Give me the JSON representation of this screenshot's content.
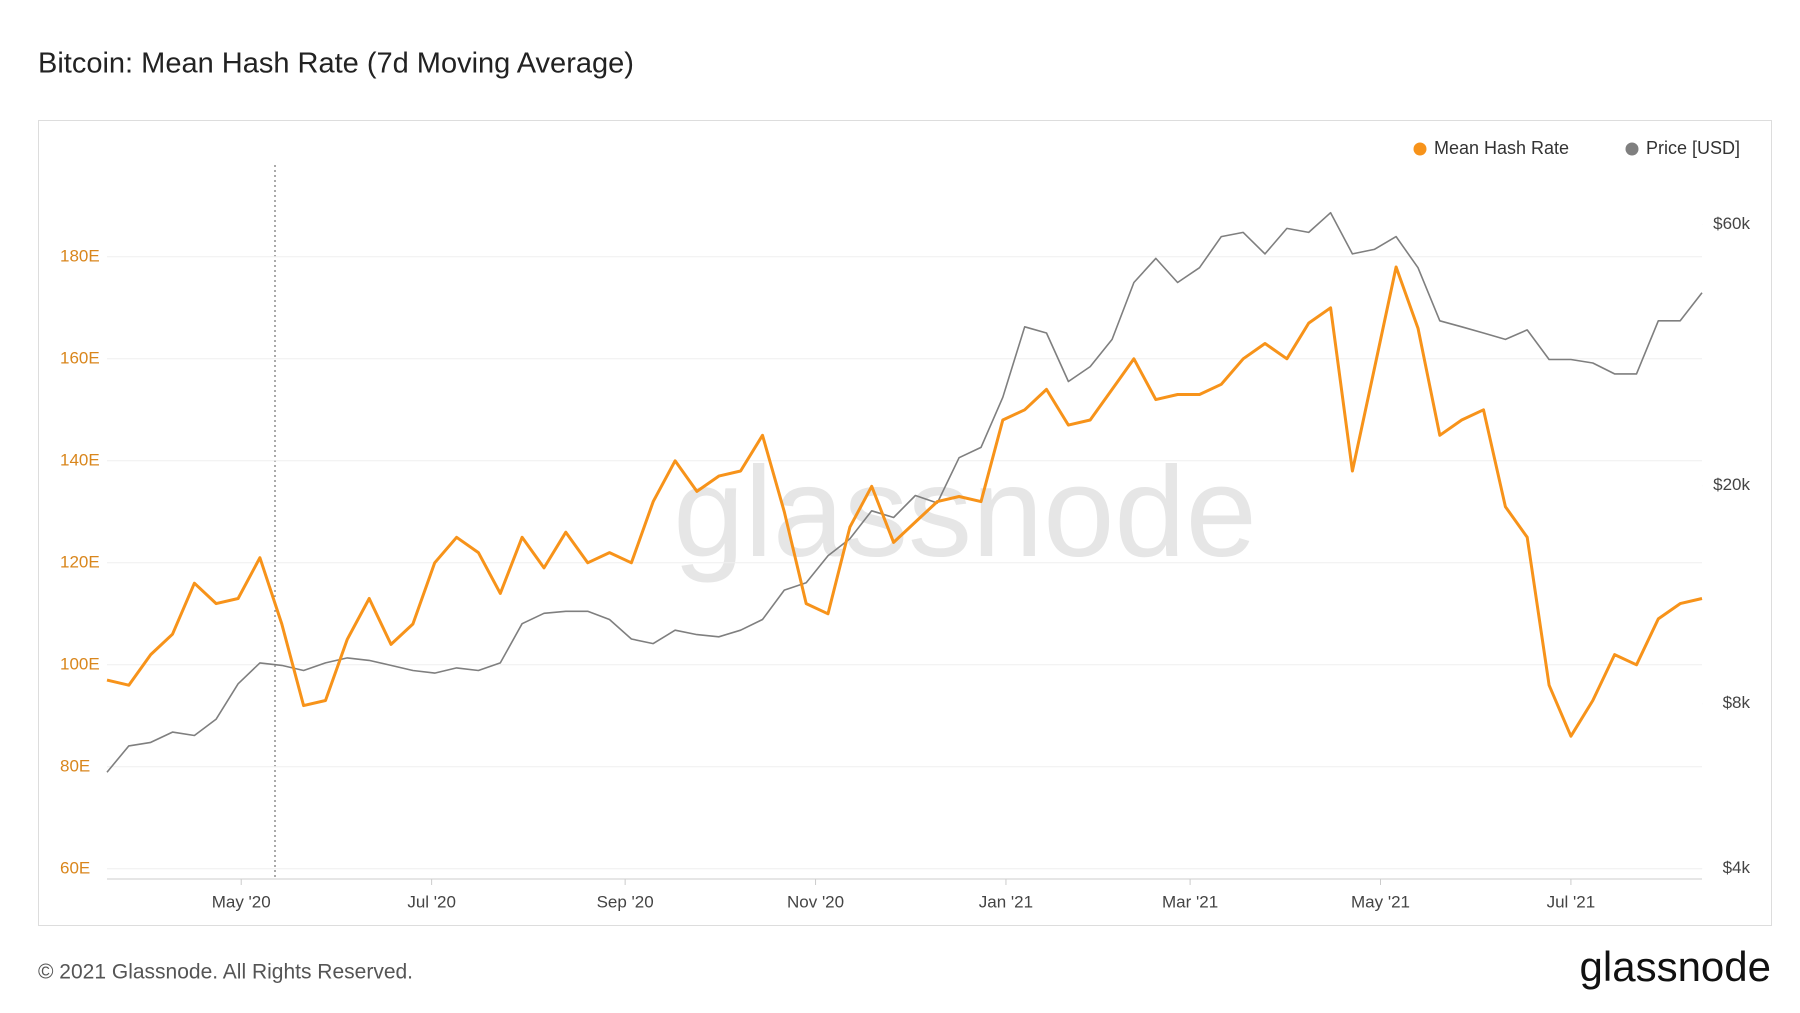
{
  "chart_data": {
    "type": "line",
    "title": "Bitcoin: Mean Hash Rate (7d Moving Average)",
    "watermark": "glassnode",
    "x": [
      "2020-03-19",
      "2020-03-26",
      "2020-04-02",
      "2020-04-09",
      "2020-04-16",
      "2020-04-23",
      "2020-04-30",
      "2020-05-07",
      "2020-05-14",
      "2020-05-21",
      "2020-05-28",
      "2020-06-04",
      "2020-06-11",
      "2020-06-18",
      "2020-06-25",
      "2020-07-02",
      "2020-07-09",
      "2020-07-16",
      "2020-07-23",
      "2020-07-30",
      "2020-08-06",
      "2020-08-13",
      "2020-08-20",
      "2020-08-27",
      "2020-09-03",
      "2020-09-10",
      "2020-09-17",
      "2020-09-24",
      "2020-10-01",
      "2020-10-08",
      "2020-10-15",
      "2020-10-22",
      "2020-10-29",
      "2020-11-05",
      "2020-11-12",
      "2020-11-19",
      "2020-11-26",
      "2020-12-03",
      "2020-12-10",
      "2020-12-17",
      "2020-12-24",
      "2020-12-31",
      "2021-01-07",
      "2021-01-14",
      "2021-01-21",
      "2021-01-28",
      "2021-02-04",
      "2021-02-11",
      "2021-02-18",
      "2021-02-25",
      "2021-03-04",
      "2021-03-11",
      "2021-03-18",
      "2021-03-25",
      "2021-04-01",
      "2021-04-08",
      "2021-04-15",
      "2021-04-22",
      "2021-04-29",
      "2021-05-06",
      "2021-05-13",
      "2021-05-20",
      "2021-05-27",
      "2021-06-03",
      "2021-06-10",
      "2021-06-17",
      "2021-06-24",
      "2021-07-01",
      "2021-07-08",
      "2021-07-15",
      "2021-07-22",
      "2021-07-29",
      "2021-08-05",
      "2021-08-12"
    ],
    "series": [
      {
        "name": "Mean Hash Rate",
        "color": "#f7931a",
        "axis": "y",
        "values": [
          97,
          96,
          102,
          106,
          116,
          112,
          113,
          121,
          108,
          92,
          93,
          105,
          113,
          104,
          108,
          120,
          125,
          122,
          114,
          125,
          119,
          126,
          120,
          122,
          120,
          132,
          140,
          134,
          137,
          138,
          145,
          130,
          112,
          110,
          127,
          135,
          124,
          128,
          132,
          133,
          132,
          148,
          150,
          154,
          147,
          148,
          154,
          160,
          152,
          153,
          153,
          155,
          160,
          163,
          160,
          167,
          170,
          138,
          158,
          178,
          166,
          145,
          148,
          150,
          131,
          125,
          96,
          86,
          93,
          102,
          100,
          109,
          112,
          113
        ]
      },
      {
        "name": "Price [USD]",
        "color": "#7f7f7f",
        "axis": "y2",
        "values": [
          6000,
          6700,
          6800,
          7100,
          7000,
          7500,
          8700,
          9500,
          9400,
          9200,
          9500,
          9700,
          9600,
          9400,
          9200,
          9100,
          9300,
          9200,
          9500,
          11200,
          11700,
          11800,
          11800,
          11400,
          10500,
          10300,
          10900,
          10700,
          10600,
          10900,
          11400,
          12900,
          13300,
          14900,
          16000,
          18000,
          17500,
          19200,
          18600,
          22500,
          23500,
          29000,
          39000,
          38000,
          31000,
          33000,
          37000,
          47000,
          52000,
          47000,
          50000,
          57000,
          58000,
          53000,
          59000,
          58000,
          63000,
          53000,
          54000,
          57000,
          50000,
          40000,
          39000,
          38000,
          37000,
          38500,
          34000,
          34000,
          33500,
          32000,
          32000,
          40000,
          40000,
          45000
        ]
      }
    ],
    "xlim": [
      "2020-03-19",
      "2021-08-12"
    ],
    "xticks": [
      {
        "value": "2020-05-01",
        "label": "May '20"
      },
      {
        "value": "2020-07-01",
        "label": "Jul '20"
      },
      {
        "value": "2020-09-01",
        "label": "Sep '20"
      },
      {
        "value": "2020-11-01",
        "label": "Nov '20"
      },
      {
        "value": "2021-01-01",
        "label": "Jan '21"
      },
      {
        "value": "2021-03-01",
        "label": "Mar '21"
      },
      {
        "value": "2021-05-01",
        "label": "May '21"
      },
      {
        "value": "2021-07-01",
        "label": "Jul '21"
      }
    ],
    "ylim": [
      58,
      198
    ],
    "yticks": [
      {
        "value": 60,
        "label": "60E"
      },
      {
        "value": 80,
        "label": "80E"
      },
      {
        "value": 100,
        "label": "100E"
      },
      {
        "value": 120,
        "label": "120E"
      },
      {
        "value": 140,
        "label": "140E"
      },
      {
        "value": 160,
        "label": "160E"
      },
      {
        "value": 180,
        "label": "180E"
      }
    ],
    "y2lim": [
      3830,
      77000
    ],
    "y2log": true,
    "y2ticks": [
      {
        "value": 4000,
        "label": "$4k"
      },
      {
        "value": 8000,
        "label": "$8k"
      },
      {
        "value": 20000,
        "label": "$20k"
      },
      {
        "value": 60000,
        "label": "$60k"
      }
    ],
    "grid": true,
    "legend": "top-right"
  },
  "footer": "© 2021 Glassnode. All Rights Reserved.",
  "logo": "glassnode"
}
